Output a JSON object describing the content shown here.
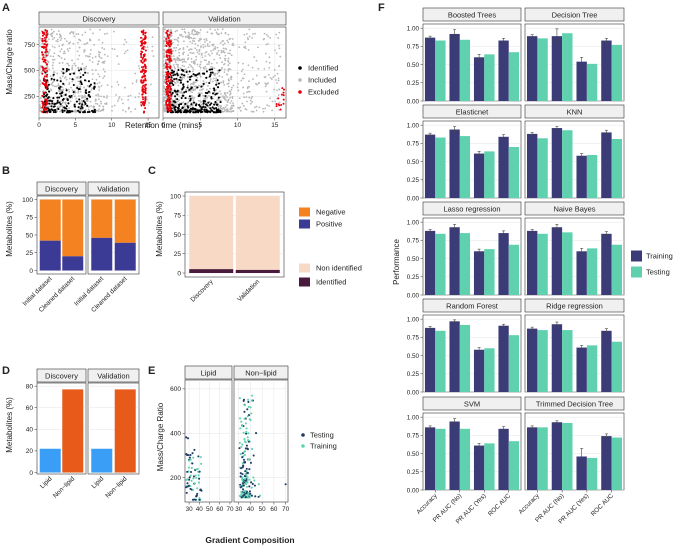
{
  "colors": {
    "identified": "#000000",
    "included": "#b8b8b8",
    "excluded": "#e8000b",
    "negative": "#f58220",
    "positive": "#3b3b96",
    "non_identified": "#f8d9c5",
    "identified_bar": "#4a1a3c",
    "lipid": "#3a9ef7",
    "non_lipid": "#e85a19",
    "testing": "#1f3b66",
    "training": "#5ed3b0",
    "perf_training": "#3b3b78",
    "perf_testing": "#5fd1ae",
    "strip": "#f0f0f0",
    "grid": "#dedede"
  },
  "panel_labels": [
    "A",
    "B",
    "C",
    "D",
    "E",
    "F"
  ],
  "chart_data": [
    {
      "id": "A",
      "type": "scatter",
      "facets": [
        "Discovery",
        "Validation"
      ],
      "xlabel": "Retention time (mins)",
      "ylabel": "Mass/Charge ratio",
      "xlim": [
        0,
        16.5
      ],
      "ylim": [
        40,
        920
      ],
      "xticks": [
        0,
        5,
        10,
        15
      ],
      "yticks": [
        250,
        500,
        750
      ],
      "legend": [
        "Identified",
        "Included",
        "Excluded"
      ]
    },
    {
      "id": "B",
      "type": "bar",
      "facets": [
        "Discovery",
        "Validation"
      ],
      "categories": [
        "Initial dataset",
        "Cleaned dataset"
      ],
      "series": [
        {
          "name": "Positive",
          "values": {
            "Discovery": [
              42,
              20
            ],
            "Validation": [
              46,
              39
            ]
          }
        },
        {
          "name": "Negative",
          "values": {
            "Discovery": [
              58,
              80
            ],
            "Validation": [
              54,
              61
            ]
          }
        }
      ],
      "ylabel": "Metabolites (%)",
      "ylim": [
        0,
        100
      ],
      "yticks": [
        0,
        25,
        50,
        75,
        100
      ],
      "legend": [
        "Negative",
        "Positive"
      ]
    },
    {
      "id": "C",
      "type": "bar",
      "categories": [
        "Discovery",
        "Validation"
      ],
      "series": [
        {
          "name": "Identified",
          "values": [
            5,
            4
          ]
        },
        {
          "name": "Non identified",
          "values": [
            95,
            96
          ]
        }
      ],
      "ylabel": "Metabolites (%)",
      "ylim": [
        0,
        100
      ],
      "yticks": [
        0,
        25,
        50,
        75,
        100
      ],
      "legend": [
        "Non identified",
        "Identified"
      ]
    },
    {
      "id": "D",
      "type": "bar",
      "facets": [
        "Discovery",
        "Validation"
      ],
      "categories": [
        "Lipid",
        "Non−lipid"
      ],
      "values": {
        "Discovery": [
          22,
          77
        ],
        "Validation": [
          22,
          77
        ]
      },
      "ylabel": "Metabolites (%)",
      "ylim": [
        0,
        82
      ],
      "yticks": [
        0,
        20,
        40,
        60,
        80
      ]
    },
    {
      "id": "E",
      "type": "scatter",
      "facets": [
        "Lipid",
        "Non−lipid"
      ],
      "xlabel": "Gradient Composition",
      "ylabel": "Mass/Charge Ratio",
      "xlim": [
        26,
        72
      ],
      "ylim": [
        90,
        640
      ],
      "xticks": [
        30,
        40,
        50,
        60,
        70
      ],
      "yticks": [
        200,
        400,
        600
      ],
      "legend": [
        "Testing",
        "Training"
      ]
    },
    {
      "id": "F",
      "type": "bar",
      "ylabel": "Performance",
      "categories": [
        "Accuracy",
        "PR AUC (No)",
        "PR AUC (Yes)",
        "ROC AUC"
      ],
      "ylim": [
        0,
        1.05
      ],
      "yticks": [
        "0.00",
        "0.25",
        "0.50",
        "0.75",
        "1.00"
      ],
      "legend": [
        "Training",
        "Testing"
      ],
      "models": [
        {
          "name": "Boosted Trees",
          "training": [
            0.87,
            0.92,
            0.6,
            0.83
          ],
          "testing": [
            0.83,
            0.84,
            0.64,
            0.67
          ],
          "err": [
            0.02,
            0.06,
            0.04,
            0.03
          ]
        },
        {
          "name": "Decision Tree",
          "training": [
            0.89,
            0.89,
            0.54,
            0.83
          ],
          "testing": [
            0.86,
            0.93,
            0.51,
            0.77
          ],
          "err": [
            0.02,
            0.1,
            0.06,
            0.03
          ]
        },
        {
          "name": "Elasticnet",
          "training": [
            0.87,
            0.94,
            0.61,
            0.84
          ],
          "testing": [
            0.83,
            0.85,
            0.64,
            0.7
          ],
          "err": [
            0.02,
            0.04,
            0.03,
            0.03
          ]
        },
        {
          "name": "KNN",
          "training": [
            0.88,
            0.96,
            0.58,
            0.9
          ],
          "testing": [
            0.82,
            0.93,
            0.59,
            0.81
          ],
          "err": [
            0.02,
            0.02,
            0.03,
            0.03
          ]
        },
        {
          "name": "Lasso regression",
          "training": [
            0.88,
            0.93,
            0.6,
            0.85
          ],
          "testing": [
            0.84,
            0.85,
            0.63,
            0.69
          ],
          "err": [
            0.02,
            0.04,
            0.03,
            0.03
          ]
        },
        {
          "name": "Naive Bayes",
          "training": [
            0.88,
            0.93,
            0.6,
            0.84
          ],
          "testing": [
            0.84,
            0.86,
            0.64,
            0.69
          ],
          "err": [
            0.02,
            0.04,
            0.04,
            0.03
          ]
        },
        {
          "name": "Random Forest",
          "training": [
            0.88,
            0.97,
            0.58,
            0.91
          ],
          "testing": [
            0.84,
            0.92,
            0.6,
            0.78
          ],
          "err": [
            0.02,
            0.02,
            0.03,
            0.02
          ]
        },
        {
          "name": "Ridge regression",
          "training": [
            0.87,
            0.93,
            0.61,
            0.84
          ],
          "testing": [
            0.85,
            0.85,
            0.64,
            0.69
          ],
          "err": [
            0.02,
            0.03,
            0.03,
            0.03
          ]
        },
        {
          "name": "SVM",
          "training": [
            0.86,
            0.94,
            0.61,
            0.84
          ],
          "testing": [
            0.84,
            0.84,
            0.64,
            0.67
          ],
          "err": [
            0.02,
            0.04,
            0.03,
            0.03
          ]
        },
        {
          "name": "Trimmed Decision Tree",
          "training": [
            0.86,
            0.93,
            0.46,
            0.74
          ],
          "testing": [
            0.86,
            0.92,
            0.44,
            0.72
          ],
          "err": [
            0.02,
            0.02,
            0.11,
            0.03
          ]
        }
      ]
    }
  ]
}
